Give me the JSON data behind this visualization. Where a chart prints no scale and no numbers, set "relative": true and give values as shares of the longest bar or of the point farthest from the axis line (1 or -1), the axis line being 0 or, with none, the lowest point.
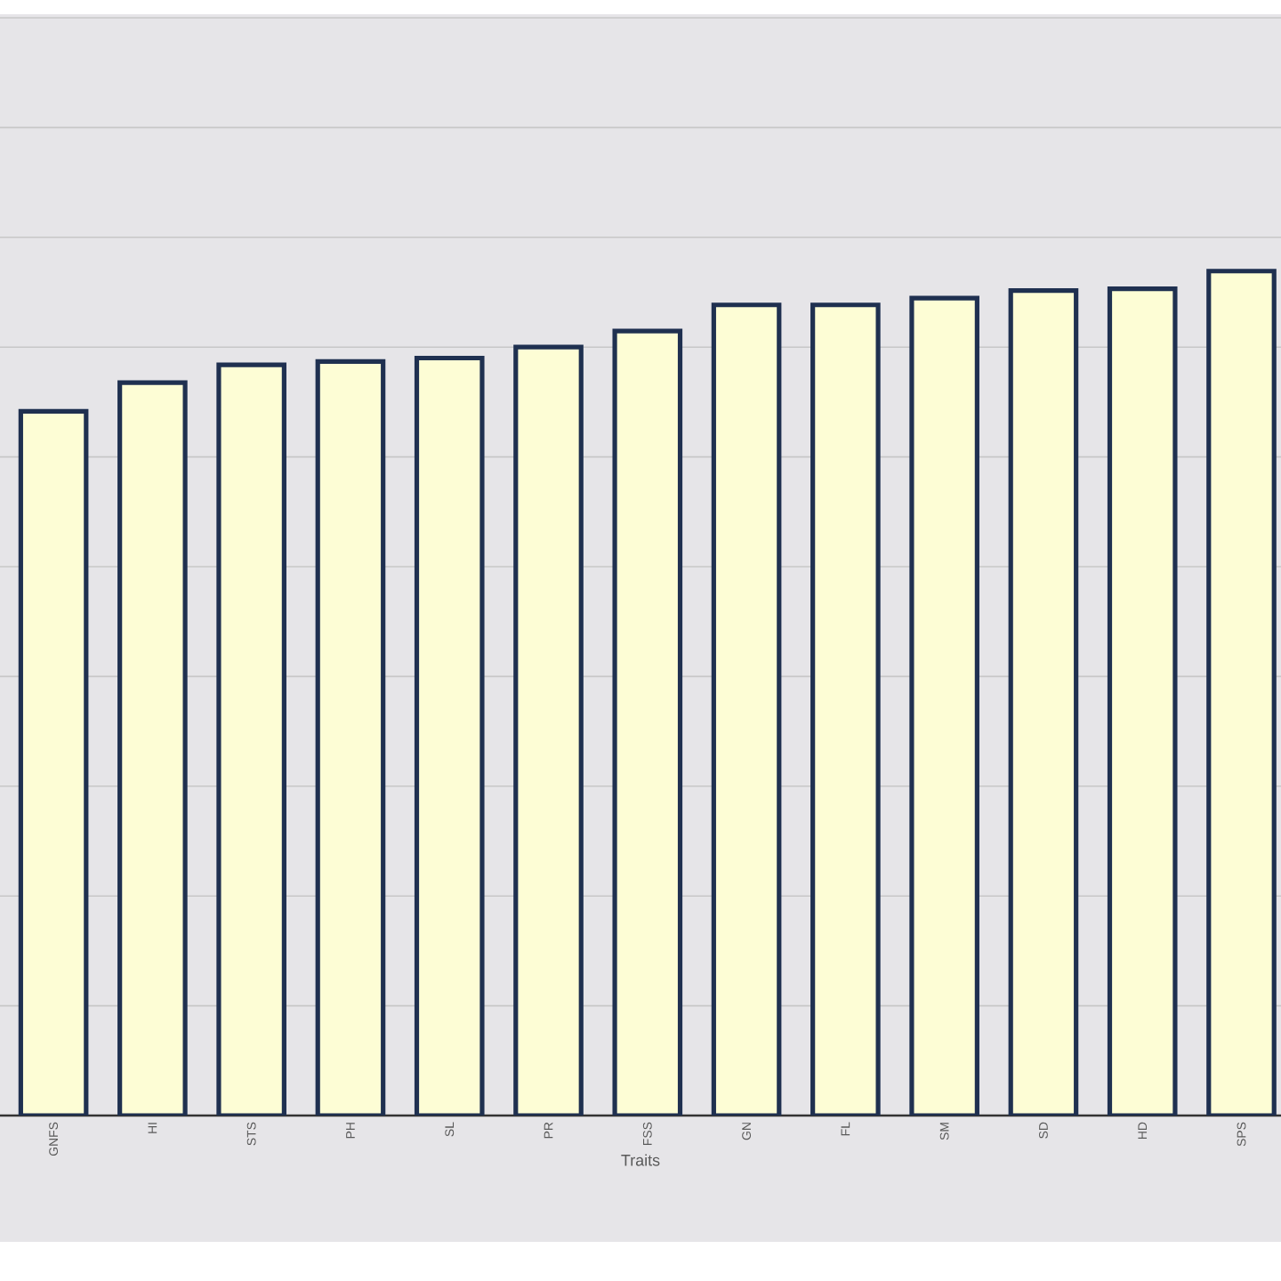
{
  "chart_data": {
    "type": "bar",
    "xlabel": "Traits",
    "relative": true,
    "grid": "y",
    "color": "#fdfdd5",
    "categories": [
      "GNFS",
      "HI",
      "STS",
      "PH",
      "SL",
      "PR",
      "FSS",
      "GN",
      "FL",
      "SM",
      "SD",
      "HD",
      "SPS"
    ],
    "values": [
      0.834,
      0.868,
      0.889,
      0.893,
      0.897,
      0.91,
      0.929,
      0.96,
      0.96,
      0.968,
      0.977,
      0.979,
      1
    ]
  }
}
